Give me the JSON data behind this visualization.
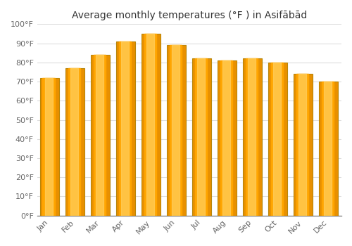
{
  "title": "Average monthly temperatures (°F ) in Asifābād",
  "months": [
    "Jan",
    "Feb",
    "Mar",
    "Apr",
    "May",
    "Jun",
    "Jul",
    "Aug",
    "Sep",
    "Oct",
    "Nov",
    "Dec"
  ],
  "values": [
    72,
    77,
    84,
    91,
    95,
    89,
    82,
    81,
    82,
    80,
    74,
    70
  ],
  "bar_color_main": "#FFA500",
  "bar_color_light": "#FFD060",
  "bar_color_dark": "#E89000",
  "bar_edge_color": "#B8860B",
  "background_color": "#ffffff",
  "grid_color": "#dddddd",
  "ylim": [
    0,
    100
  ],
  "yticks": [
    0,
    10,
    20,
    30,
    40,
    50,
    60,
    70,
    80,
    90,
    100
  ],
  "ytick_labels": [
    "0°F",
    "10°F",
    "20°F",
    "30°F",
    "40°F",
    "50°F",
    "60°F",
    "70°F",
    "80°F",
    "90°F",
    "100°F"
  ],
  "title_fontsize": 10,
  "tick_fontsize": 8,
  "figsize": [
    5.0,
    3.5
  ],
  "dpi": 100,
  "bar_width": 0.75
}
